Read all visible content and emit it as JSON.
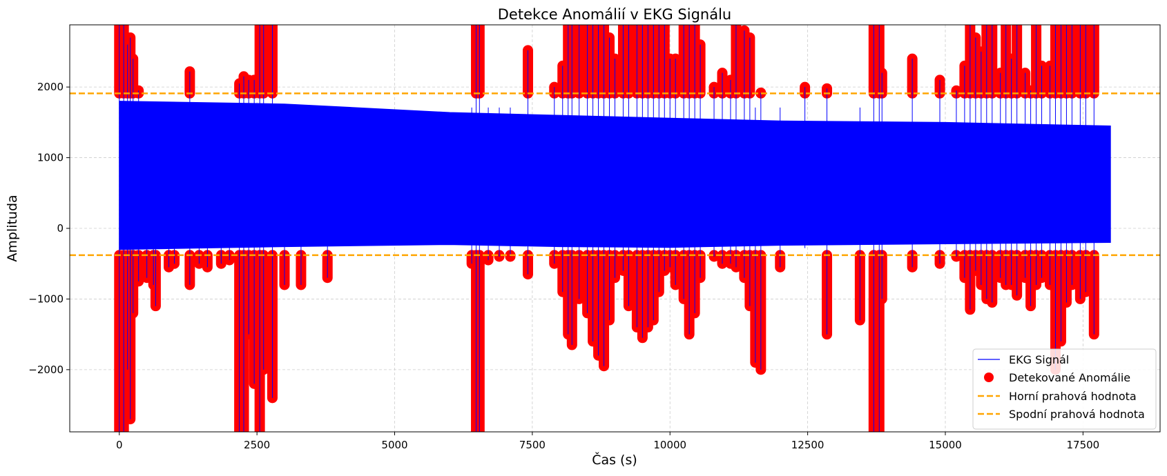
{
  "chart_data": {
    "type": "line",
    "title": "Detekce Anomálií v EKG Signálu",
    "xlabel": "Čas (s)",
    "ylabel": "Amplituda",
    "xlim": [
      -900,
      18900
    ],
    "ylim": [
      -2880,
      2880
    ],
    "x_ticks": [
      0,
      2500,
      5000,
      7500,
      10000,
      12500,
      15000,
      17500
    ],
    "x_tick_labels": [
      "0",
      "2500",
      "5000",
      "7500",
      "10000",
      "12500",
      "15000",
      "17500"
    ],
    "y_ticks": [
      -2000,
      -1000,
      0,
      1000,
      2000
    ],
    "y_tick_labels": [
      "−2000",
      "−1000",
      "0",
      "1000",
      "2000"
    ],
    "grid": true,
    "legend_position": "lower right",
    "colors": {
      "signal": "#0000ff",
      "anomaly": "#ff0000",
      "threshold": "#ffa500",
      "grid": "#cccccc"
    },
    "signal": {
      "name": "EKG Signál",
      "x_range": [
        0,
        18000
      ],
      "envelope": [
        {
          "x": 0,
          "low": -300,
          "high": 1800
        },
        {
          "x": 3000,
          "low": -260,
          "high": 1760
        },
        {
          "x": 6000,
          "low": -230,
          "high": 1640
        },
        {
          "x": 8000,
          "low": -260,
          "high": 1600
        },
        {
          "x": 10000,
          "low": -270,
          "high": 1560
        },
        {
          "x": 12000,
          "low": -240,
          "high": 1520
        },
        {
          "x": 15000,
          "low": -220,
          "high": 1500
        },
        {
          "x": 18000,
          "low": -200,
          "high": 1450
        }
      ]
    },
    "thresholds": [
      {
        "name": "Horní prahová hodnota",
        "y": 1910
      },
      {
        "name": "Spodní prahová hodnota",
        "y": -380
      }
    ],
    "anomalies_name": "Detekované Anomálie",
    "anomalies": [
      {
        "x": 0,
        "hi": 2880,
        "lo": -2880
      },
      {
        "x": 80,
        "hi": 2880,
        "lo": -2880
      },
      {
        "x": 150,
        "hi": 2600,
        "lo": -2000
      },
      {
        "x": 200,
        "hi": 2700,
        "lo": -2700
      },
      {
        "x": 250,
        "hi": 2400,
        "lo": -1200
      },
      {
        "x": 350,
        "hi": 1950,
        "lo": -750
      },
      {
        "x": 500,
        "lo": -700
      },
      {
        "x": 620,
        "lo": -800
      },
      {
        "x": 660,
        "lo": -1100
      },
      {
        "x": 900,
        "lo": -550
      },
      {
        "x": 1000,
        "lo": -500
      },
      {
        "x": 1280,
        "hi": 2220,
        "lo": -800
      },
      {
        "x": 1450,
        "lo": -500
      },
      {
        "x": 1600,
        "lo": -550
      },
      {
        "x": 1850,
        "lo": -500
      },
      {
        "x": 2000,
        "lo": -450
      },
      {
        "x": 2180,
        "hi": 2050,
        "lo": -2880
      },
      {
        "x": 2260,
        "hi": 2150,
        "lo": -2880
      },
      {
        "x": 2350,
        "hi": 2100,
        "lo": -1500
      },
      {
        "x": 2450,
        "hi": 2100,
        "lo": -2200
      },
      {
        "x": 2550,
        "hi": 2880,
        "lo": -2880
      },
      {
        "x": 2620,
        "hi": 2880,
        "lo": -2000
      },
      {
        "x": 2780,
        "hi": 2880,
        "lo": -2400
      },
      {
        "x": 3000,
        "lo": -800
      },
      {
        "x": 3300,
        "lo": -800
      },
      {
        "x": 3780,
        "lo": -700
      },
      {
        "x": 6400,
        "lo": -500
      },
      {
        "x": 6480,
        "hi": 2880,
        "lo": -2880
      },
      {
        "x": 6540,
        "hi": 2880,
        "lo": -2880
      },
      {
        "x": 6700,
        "lo": -450
      },
      {
        "x": 6900,
        "lo": -400
      },
      {
        "x": 7100,
        "lo": -400
      },
      {
        "x": 7420,
        "hi": 2520,
        "lo": -650
      },
      {
        "x": 7900,
        "hi": 2000,
        "lo": -500
      },
      {
        "x": 8050,
        "hi": 2300,
        "lo": -900
      },
      {
        "x": 8150,
        "hi": 2880,
        "lo": -1500
      },
      {
        "x": 8220,
        "hi": 2880,
        "lo": -1650
      },
      {
        "x": 8350,
        "hi": 2880,
        "lo": -1000
      },
      {
        "x": 8500,
        "hi": 2880,
        "lo": -1200
      },
      {
        "x": 8600,
        "hi": 2880,
        "lo": -1600
      },
      {
        "x": 8700,
        "hi": 2880,
        "lo": -1800
      },
      {
        "x": 8800,
        "hi": 2880,
        "lo": -1950
      },
      {
        "x": 8900,
        "hi": 2700,
        "lo": -1300
      },
      {
        "x": 9000,
        "hi": 2400,
        "lo": -700
      },
      {
        "x": 9150,
        "hi": 2880,
        "lo": -600
      },
      {
        "x": 9250,
        "hi": 2880,
        "lo": -1100
      },
      {
        "x": 9400,
        "hi": 2880,
        "lo": -1400
      },
      {
        "x": 9500,
        "hi": 2880,
        "lo": -1550
      },
      {
        "x": 9600,
        "hi": 2880,
        "lo": -1400
      },
      {
        "x": 9700,
        "hi": 2880,
        "lo": -1300
      },
      {
        "x": 9800,
        "hi": 2880,
        "lo": -900
      },
      {
        "x": 9900,
        "hi": 2880,
        "lo": -600
      },
      {
        "x": 10000,
        "hi": 2400,
        "lo": -550
      },
      {
        "x": 10100,
        "hi": 2400,
        "lo": -800
      },
      {
        "x": 10250,
        "hi": 2880,
        "lo": -1000
      },
      {
        "x": 10350,
        "hi": 2880,
        "lo": -1500
      },
      {
        "x": 10450,
        "hi": 2880,
        "lo": -1200
      },
      {
        "x": 10550,
        "hi": 2600,
        "lo": -700
      },
      {
        "x": 10800,
        "hi": 2000,
        "lo": -400
      },
      {
        "x": 10950,
        "hi": 2200,
        "lo": -500
      },
      {
        "x": 11100,
        "hi": 2100,
        "lo": -500
      },
      {
        "x": 11200,
        "hi": 2880,
        "lo": -550
      },
      {
        "x": 11350,
        "hi": 2800,
        "lo": -700
      },
      {
        "x": 11450,
        "hi": 2700,
        "lo": -1100
      },
      {
        "x": 11550,
        "lo": -1900
      },
      {
        "x": 11650,
        "hi": 1920,
        "lo": -2000
      },
      {
        "x": 12000,
        "lo": -550
      },
      {
        "x": 12450,
        "hi": 2000
      },
      {
        "x": 12850,
        "hi": 1980,
        "lo": -1500
      },
      {
        "x": 13450,
        "lo": -1300
      },
      {
        "x": 13700,
        "hi": 2880,
        "lo": -2880
      },
      {
        "x": 13800,
        "hi": 2880,
        "lo": -2880
      },
      {
        "x": 13850,
        "hi": 2200,
        "lo": -1000
      },
      {
        "x": 14400,
        "hi": 2400,
        "lo": -550
      },
      {
        "x": 14900,
        "hi": 2100,
        "lo": -500
      },
      {
        "x": 15200,
        "hi": 1950,
        "lo": -400
      },
      {
        "x": 15350,
        "hi": 2300,
        "lo": -700
      },
      {
        "x": 15450,
        "hi": 2880,
        "lo": -1150
      },
      {
        "x": 15550,
        "hi": 2700,
        "lo": -600
      },
      {
        "x": 15650,
        "hi": 2500,
        "lo": -800
      },
      {
        "x": 15750,
        "hi": 2880,
        "lo": -1000
      },
      {
        "x": 15850,
        "hi": 2880,
        "lo": -1050
      },
      {
        "x": 16000,
        "hi": 2200,
        "lo": -700
      },
      {
        "x": 16100,
        "hi": 2880,
        "lo": -800
      },
      {
        "x": 16200,
        "hi": 2400,
        "lo": -800
      },
      {
        "x": 16300,
        "hi": 2880,
        "lo": -950
      },
      {
        "x": 16450,
        "hi": 2200,
        "lo": -700
      },
      {
        "x": 16550,
        "hi": 1950,
        "lo": -1100
      },
      {
        "x": 16650,
        "hi": 2880,
        "lo": -800
      },
      {
        "x": 16750,
        "hi": 2300,
        "lo": -700
      },
      {
        "x": 16900,
        "hi": 2300,
        "lo": -800
      },
      {
        "x": 17000,
        "hi": 2880,
        "lo": -2000
      },
      {
        "x": 17100,
        "hi": 2880,
        "lo": -1600
      },
      {
        "x": 17200,
        "hi": 2880,
        "lo": -1050
      },
      {
        "x": 17300,
        "hi": 2880,
        "lo": -800
      },
      {
        "x": 17450,
        "hi": 2880,
        "lo": -1000
      },
      {
        "x": 17550,
        "hi": 2880,
        "lo": -900
      },
      {
        "x": 17700,
        "hi": 2880,
        "lo": -1500
      }
    ]
  }
}
